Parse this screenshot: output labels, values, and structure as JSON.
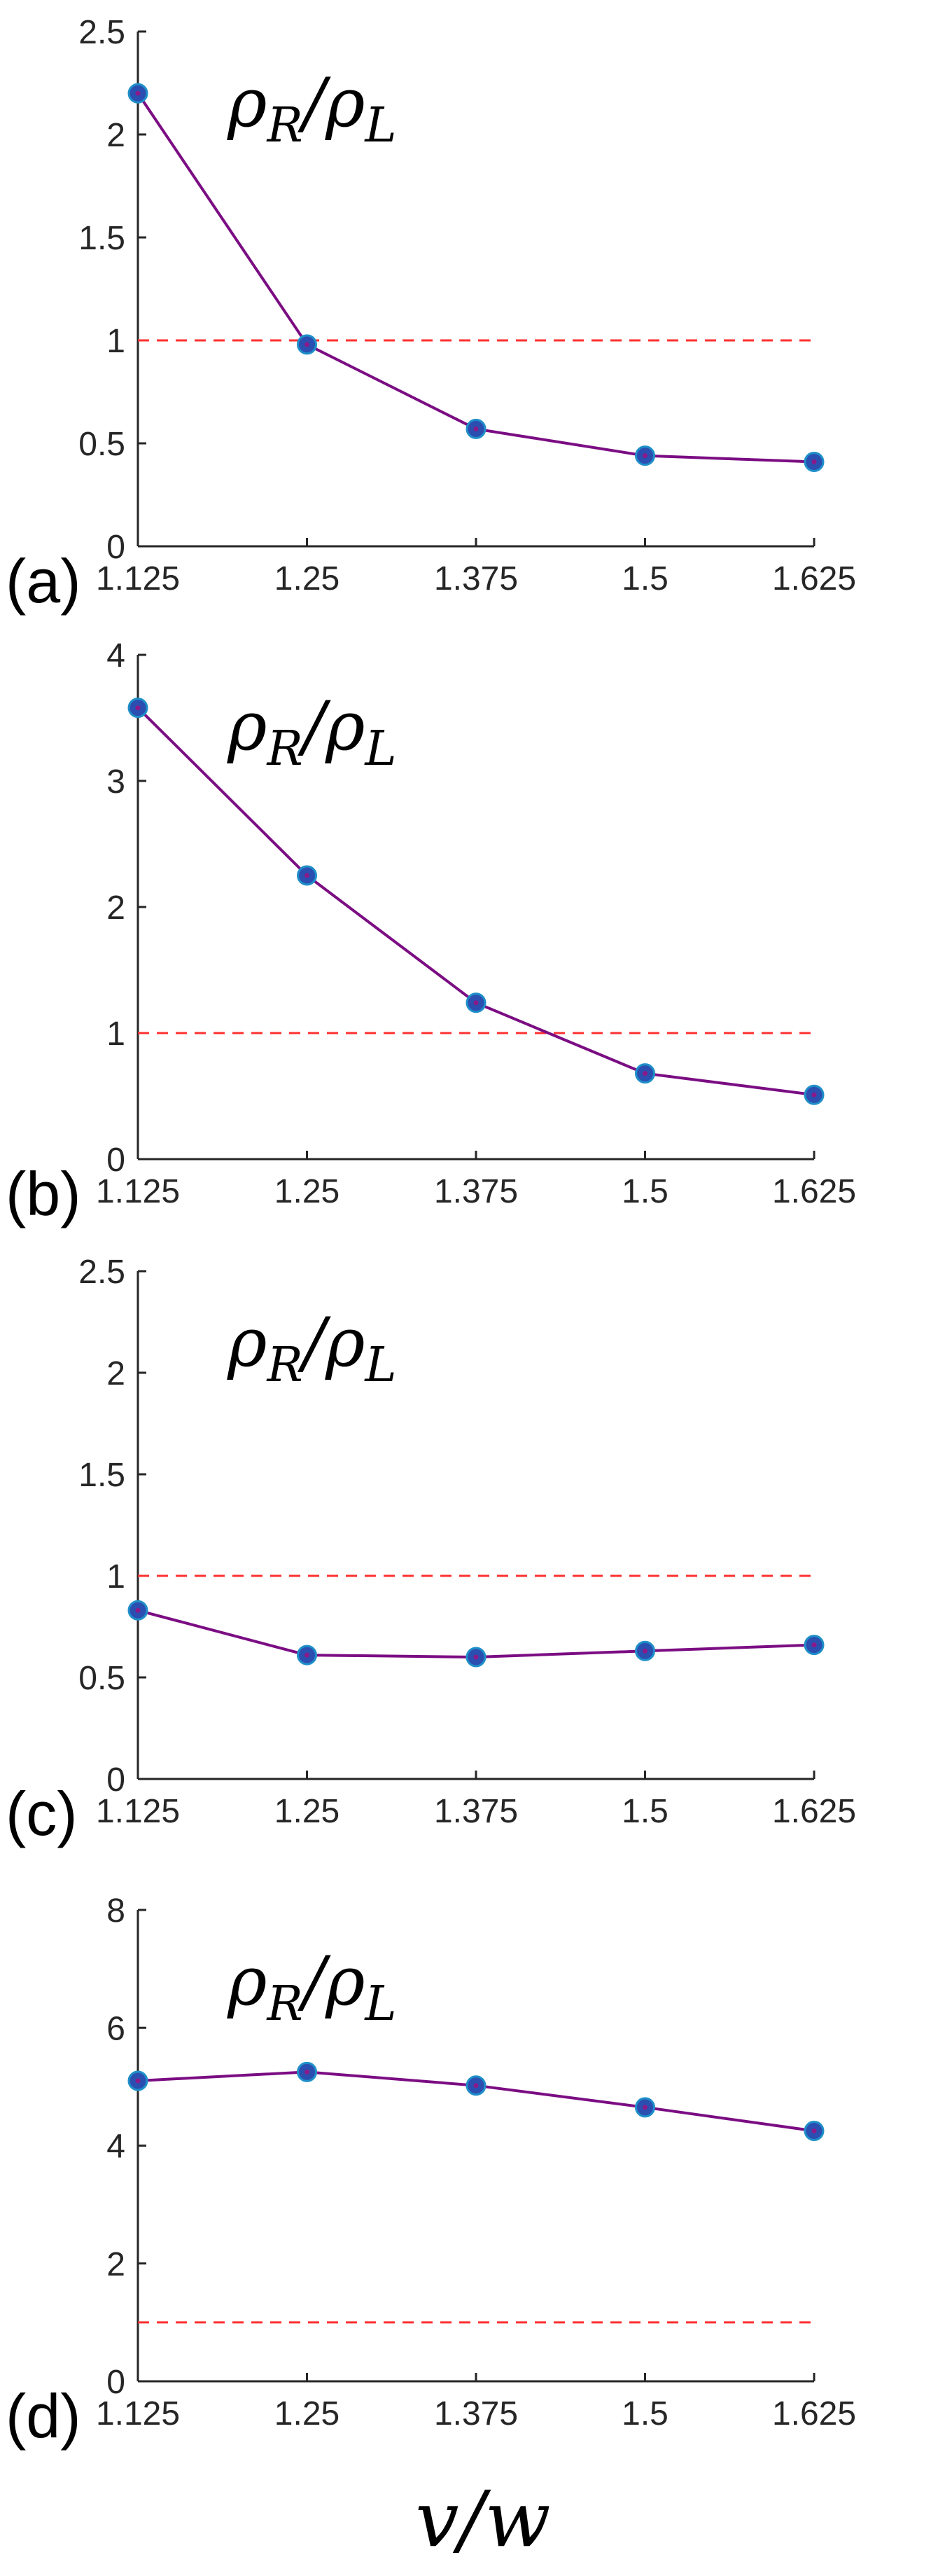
{
  "figure": {
    "xlabel": "v/w"
  },
  "colors": {
    "series_line": "#7b0d83",
    "marker_fill": "#2b4fb0",
    "marker_edge": "#1f8fc9",
    "marker_center": "#8a1a8a",
    "reference_line": "#ff3030",
    "axis": "#262626"
  },
  "chart_data": [
    {
      "type": "line",
      "panel": "(a)",
      "annotation": "ρR/ρL",
      "x": [
        1.125,
        1.25,
        1.375,
        1.5,
        1.625
      ],
      "x_tick_labels": [
        "1.125",
        "1.25",
        "1.375",
        "1.5",
        "1.625"
      ],
      "series": [
        {
          "values": [
            2.2,
            0.98,
            0.57,
            0.44,
            0.41
          ]
        }
      ],
      "reference_line": {
        "y": 1,
        "style": "dashed"
      },
      "xlim": [
        1.125,
        1.625
      ],
      "ylim": [
        0,
        2.5
      ],
      "y_ticks": [
        0,
        0.5,
        1,
        1.5,
        2,
        2.5
      ],
      "y_tick_labels": [
        "0",
        "0.5",
        "1",
        "1.5",
        "2",
        "2.5"
      ],
      "grid": false,
      "box": false
    },
    {
      "type": "line",
      "panel": "(b)",
      "annotation": "ρR/ρL",
      "x": [
        1.125,
        1.25,
        1.375,
        1.5,
        1.625
      ],
      "x_tick_labels": [
        "1.125",
        "1.25",
        "1.375",
        "1.5",
        "1.625"
      ],
      "series": [
        {
          "values": [
            3.58,
            2.25,
            1.24,
            0.68,
            0.51
          ]
        }
      ],
      "reference_line": {
        "y": 1,
        "style": "dashed"
      },
      "xlim": [
        1.125,
        1.625
      ],
      "ylim": [
        0,
        4
      ],
      "y_ticks": [
        0,
        1,
        2,
        3,
        4
      ],
      "y_tick_labels": [
        "0",
        "1",
        "2",
        "3",
        "4"
      ],
      "grid": false,
      "box": false
    },
    {
      "type": "line",
      "panel": "(c)",
      "annotation": "ρR/ρL",
      "x": [
        1.125,
        1.25,
        1.375,
        1.5,
        1.625
      ],
      "x_tick_labels": [
        "1.125",
        "1.25",
        "1.375",
        "1.5",
        "1.625"
      ],
      "series": [
        {
          "values": [
            0.83,
            0.61,
            0.6,
            0.63,
            0.66
          ]
        }
      ],
      "reference_line": {
        "y": 1,
        "style": "dashed"
      },
      "xlim": [
        1.125,
        1.625
      ],
      "ylim": [
        0,
        2.5
      ],
      "y_ticks": [
        0,
        0.5,
        1,
        1.5,
        2,
        2.5
      ],
      "y_tick_labels": [
        "0",
        "0.5",
        "1",
        "1.5",
        "2",
        "2.5"
      ],
      "grid": false,
      "box": false
    },
    {
      "type": "line",
      "panel": "(d)",
      "annotation": "ρR/ρL",
      "x": [
        1.125,
        1.25,
        1.375,
        1.5,
        1.625
      ],
      "x_tick_labels": [
        "1.125",
        "1.25",
        "1.375",
        "1.5",
        "1.625"
      ],
      "series": [
        {
          "values": [
            5.1,
            5.25,
            5.02,
            4.65,
            4.25
          ]
        }
      ],
      "reference_line": {
        "y": 1,
        "style": "dashed"
      },
      "xlim": [
        1.125,
        1.625
      ],
      "ylim": [
        0,
        8
      ],
      "y_ticks": [
        0,
        2,
        4,
        6,
        8
      ],
      "y_tick_labels": [
        "0",
        "2",
        "4",
        "6",
        "8"
      ],
      "grid": false,
      "box": false
    }
  ]
}
